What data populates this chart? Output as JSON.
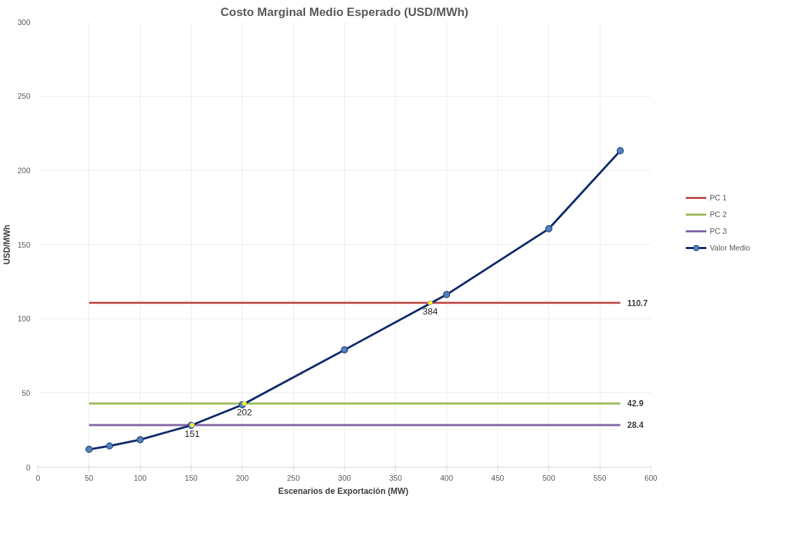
{
  "chart_data": {
    "type": "line",
    "title": "Costo Marginal Medio Esperado (USD/MWh)",
    "xlabel": "Escenarios de Exportación  (MW)",
    "ylabel": "USD/MWh",
    "xlim": [
      0,
      600
    ],
    "xticks": [
      0,
      50,
      100,
      150,
      200,
      250,
      300,
      350,
      400,
      450,
      500,
      550,
      600
    ],
    "ylim": [
      0,
      300
    ],
    "yticks": [
      0,
      50,
      100,
      150,
      200,
      250,
      300
    ],
    "grid": true,
    "legend": "right",
    "line_style": "solid",
    "series": [
      {
        "name": "PC 1",
        "color": "#c0504d",
        "marker": "none",
        "x": [
          50,
          570
        ],
        "values": [
          110.7,
          110.7
        ],
        "value_labels": [
          null,
          "110.7"
        ]
      },
      {
        "name": "PC 2",
        "color": "#9bbb59",
        "marker": "none",
        "x": [
          50,
          570
        ],
        "values": [
          42.9,
          42.9
        ],
        "value_labels": [
          null,
          "42.9"
        ]
      },
      {
        "name": "PC 3",
        "color": "#8064a2",
        "marker": "none",
        "x": [
          50,
          570
        ],
        "values": [
          28.4,
          28.4
        ],
        "value_labels": [
          null,
          "28.4"
        ]
      },
      {
        "name": "Valor Medio",
        "color": "#0e2a6b",
        "marker": "circle",
        "x": [
          50,
          70,
          100,
          150,
          200,
          300,
          400,
          500,
          570
        ],
        "values": [
          12.0,
          14.3,
          18.5,
          28.2,
          42.0,
          79.0,
          116.3,
          160.6,
          213.2
        ]
      },
      {
        "type": "scatter",
        "color": "#ffff00",
        "marker": "circle",
        "x": [
          151,
          202,
          384
        ],
        "values": [
          28.4,
          42.9,
          110.7
        ]
      }
    ],
    "annotations": [
      {
        "text": "151",
        "x": 151,
        "y": 28.4
      },
      {
        "text": "202",
        "x": 202,
        "y": 42.9
      },
      {
        "text": "384",
        "x": 384,
        "y": 110.7
      }
    ]
  }
}
